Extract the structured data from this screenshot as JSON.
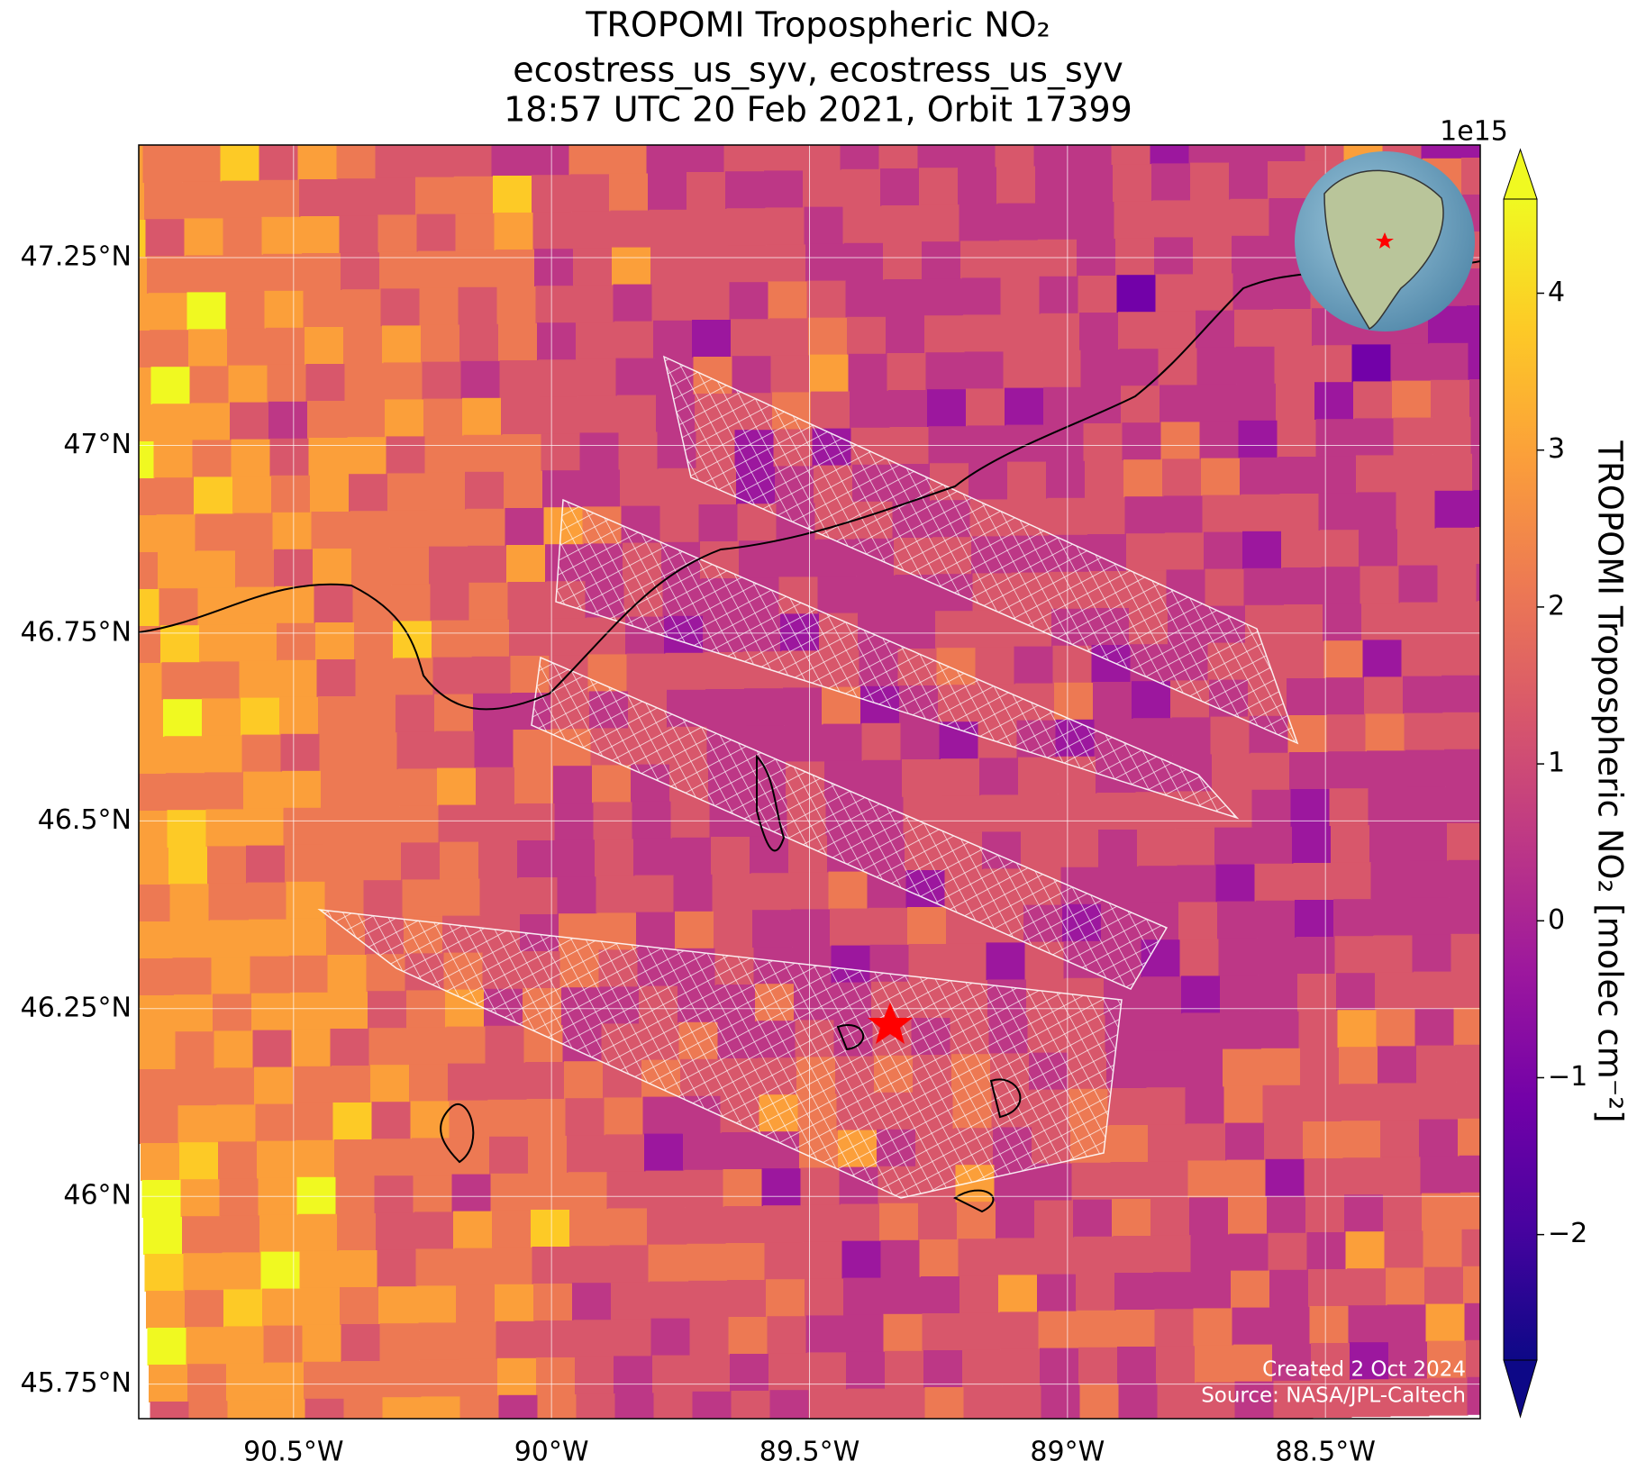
{
  "title": [
    "TROPOMI Tropospheric NO₂",
    "ecostress_us_syv, ecostress_us_syv",
    "18:57 UTC 20 Feb 2021, Orbit 17399"
  ],
  "map": {
    "xlim": [
      -90.8,
      -88.2
    ],
    "ylim": [
      45.704,
      47.4
    ],
    "xticks": [
      {
        "value": -90.5,
        "label": "90.5°W"
      },
      {
        "value": -90,
        "label": "90°W"
      },
      {
        "value": -89.5,
        "label": "89.5°W"
      },
      {
        "value": -89,
        "label": "89°W"
      },
      {
        "value": -88.5,
        "label": "88.5°W"
      }
    ],
    "yticks": [
      {
        "value": 45.75,
        "label": "45.75°N"
      },
      {
        "value": 46,
        "label": "46°N"
      },
      {
        "value": 46.25,
        "label": "46.25°N"
      },
      {
        "value": 46.5,
        "label": "46.5°N"
      },
      {
        "value": 46.75,
        "label": "46.75°N"
      },
      {
        "value": 47,
        "label": "47°N"
      },
      {
        "value": 47.25,
        "label": "47.25°N"
      }
    ],
    "grid": true
  },
  "colorbar": {
    "label": "TROPOMI Tropospheric NO₂ [molec cm⁻²]",
    "multiplier": "1e15",
    "lim": [
      -2.8,
      4.6
    ],
    "ticks": [
      {
        "value": -2,
        "label": "−2"
      },
      {
        "value": -1,
        "label": "−1"
      },
      0,
      1,
      2,
      3,
      4
    ],
    "colors": [
      "#0d0887",
      "#46039f",
      "#7201a8",
      "#9c179e",
      "#bd3786",
      "#d8576b",
      "#ed7953",
      "#fb9f3a",
      "#fdca26",
      "#f0f921"
    ]
  },
  "credits": [
    "Created 2 Oct 2024",
    "Source: NASA/JPL-Caltech"
  ]
}
